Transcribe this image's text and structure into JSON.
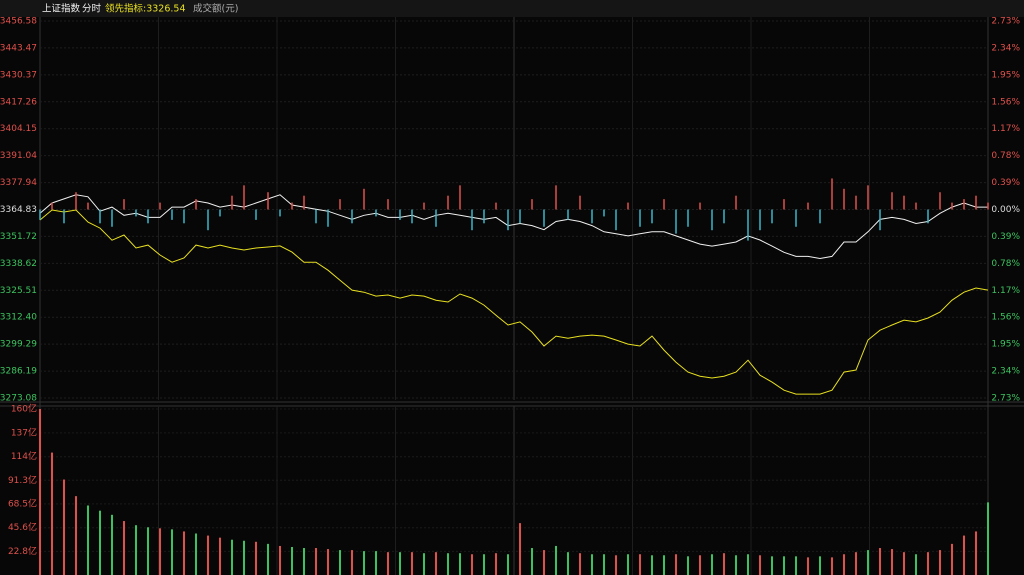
{
  "chart_data": [
    {
      "type": "line",
      "title": "上证指数",
      "period": "分时",
      "indicator_label": "领先指标:3326.54",
      "ylim": [
        3273.08,
        3456.58
      ],
      "yticks": [
        3456.58,
        3443.47,
        3430.37,
        3417.26,
        3404.15,
        3391.04,
        3377.94,
        3364.83,
        3351.72,
        3338.62,
        3325.51,
        {
          "value": 3312.4,
          "label": "3312.40"
        },
        3299.29,
        3286.19,
        3273.08
      ],
      "y2lim": [
        -2.73,
        2.73
      ],
      "y2ticks": [
        {
          "value": 2.73,
          "label": "2.73%"
        },
        {
          "value": 2.34,
          "label": "2.34%"
        },
        {
          "value": 1.95,
          "label": "1.95%"
        },
        {
          "value": 1.56,
          "label": "1.56%"
        },
        {
          "value": 1.17,
          "label": "1.17%"
        },
        {
          "value": 0.78,
          "label": "0.78%"
        },
        {
          "value": 0.39,
          "label": "0.39%"
        },
        {
          "value": 0,
          "label": "0.00%"
        },
        {
          "value": -0.39,
          "label": "0.39%"
        },
        {
          "value": -0.78,
          "label": "0.78%"
        },
        {
          "value": -1.17,
          "label": "1.17%"
        },
        {
          "value": -1.56,
          "label": "1.56%"
        },
        {
          "value": -1.95,
          "label": "1.95%"
        },
        {
          "value": -2.34,
          "label": "2.34%"
        },
        {
          "value": -2.73,
          "label": "2.73%"
        }
      ],
      "up_color": "#e0514c",
      "down_color": "#3cc35f",
      "flat_color": "#dddddd",
      "grid": true,
      "series": [
        {
          "color": "#f0f0f0",
          "values": [
            3363,
            3368,
            3370,
            3372,
            3371,
            3364,
            3366,
            3362,
            3363,
            3361,
            3361,
            3366,
            3366,
            3369,
            3368,
            3366,
            3367,
            3366,
            3368,
            3370,
            3372,
            3367,
            3366,
            3365,
            3364,
            3362,
            3360,
            3362,
            3363,
            3361,
            3361,
            3362,
            3360,
            3362,
            3363,
            3362,
            3361,
            3360,
            3361,
            3357,
            3358,
            3357,
            3355,
            3359,
            3360,
            3359,
            3357,
            3354,
            3353,
            3352,
            3353,
            3354,
            3354,
            3352,
            3350,
            3348,
            3347,
            3348,
            3349,
            3352,
            3350,
            3347,
            3344,
            3342,
            3342,
            3341,
            3342,
            3349,
            3349,
            3354,
            3360,
            3361,
            3360,
            3358,
            3359,
            3363,
            3366,
            3368,
            3366,
            3366
          ]
        },
        {
          "color": "#e8e020",
          "values": [
            3359.7,
            3364.6,
            3363.6,
            3364.6,
            3358.7,
            3355.8,
            3349.9,
            3352.4,
            3346.1,
            3347.5,
            3342.7,
            3339.2,
            3341.2,
            3347.5,
            3346.1,
            3347.5,
            3346.1,
            3345.1,
            3346.1,
            3346.6,
            3347.1,
            3344.1,
            3339.2,
            3339.2,
            3335.3,
            3330.4,
            3325.6,
            3324.6,
            3322.7,
            3323.2,
            3321.7,
            3323.2,
            3322.7,
            3320.7,
            3319.8,
            3323.7,
            3321.7,
            3318.3,
            3313.4,
            3308.6,
            3310.1,
            3305.2,
            3298.4,
            3303.2,
            3302.2,
            3303.2,
            3303.7,
            3303.2,
            3301.3,
            3299.3,
            3298.4,
            3303.2,
            3296.4,
            3290.5,
            3285.7,
            3283.7,
            3282.8,
            3283.7,
            3285.7,
            3291.5,
            3284.2,
            3280.8,
            3276.9,
            3275.0,
            3275.0,
            3275.0,
            3276.9,
            3285.7,
            3286.7,
            3301.3,
            3306.1,
            3308.6,
            3311.0,
            3310.1,
            3312.0,
            3314.9,
            3320.7,
            3324.6,
            3326.6,
            3325.6
          ]
        },
        {
          "type": "bar",
          "axis": "y2",
          "up_color": "#e0514c",
          "down_color": "#3cb6c8",
          "values": [
            -0.15,
            0.1,
            -0.2,
            0.25,
            0.1,
            -0.2,
            -0.25,
            0.15,
            -0.1,
            -0.2,
            0.1,
            -0.15,
            -0.2,
            0.15,
            -0.3,
            -0.1,
            0.2,
            0.35,
            -0.15,
            0.25,
            -0.1,
            0.1,
            0.2,
            -0.2,
            -0.25,
            0.15,
            -0.2,
            0.3,
            -0.1,
            0.15,
            -0.15,
            -0.2,
            0.1,
            -0.25,
            0.2,
            0.35,
            -0.3,
            -0.2,
            0.1,
            -0.3,
            -0.2,
            0.15,
            -0.25,
            0.35,
            -0.15,
            0.2,
            -0.2,
            -0.1,
            -0.3,
            0.1,
            -0.25,
            -0.2,
            0.15,
            -0.35,
            -0.25,
            0.1,
            -0.3,
            -0.2,
            0.2,
            -0.45,
            -0.3,
            -0.2,
            0.15,
            -0.25,
            0.1,
            -0.2,
            0.45,
            0.3,
            0.2,
            0.35,
            -0.3,
            0.25,
            0.2,
            0.1,
            -0.2,
            0.25,
            0.1,
            0.15,
            0.2,
            0.1
          ]
        }
      ]
    },
    {
      "type": "bar",
      "title": "成交额(元)",
      "ylim": [
        0,
        160
      ],
      "label_color": "#e0514c",
      "yticks": [
        {
          "value": 160,
          "label": "160亿"
        },
        {
          "value": 137,
          "label": "137亿"
        },
        {
          "value": 114,
          "label": "114亿"
        },
        {
          "value": 91.3,
          "label": "91.3亿"
        },
        {
          "value": 68.5,
          "label": "68.5亿"
        },
        {
          "value": 45.6,
          "label": "45.6亿"
        },
        {
          "value": 22.8,
          "label": "22.8亿"
        }
      ],
      "values": [
        160,
        118,
        92,
        76,
        67,
        62,
        58,
        52,
        48,
        46,
        45,
        44,
        42,
        40,
        38,
        36,
        34,
        33,
        32,
        30,
        28,
        27,
        26,
        26,
        25,
        24,
        24,
        23,
        23,
        22,
        22,
        22,
        21,
        22,
        21,
        21,
        20,
        20,
        21,
        20,
        50,
        26,
        24,
        28,
        22,
        21,
        20,
        20,
        19,
        20,
        20,
        19,
        19,
        20,
        18,
        19,
        20,
        21,
        19,
        20,
        19,
        18,
        18,
        18,
        17,
        18,
        17,
        20,
        22,
        24,
        26,
        25,
        22,
        20,
        22,
        24,
        30,
        38,
        42,
        70
      ],
      "colors": [
        "#e0514c",
        "#e0514c",
        "#e0514c",
        "#e0514c",
        "#3cc35f",
        "#3cc35f",
        "#3cc35f",
        "#e0514c",
        "#3cc35f",
        "#3cc35f",
        "#e0514c",
        "#3cc35f",
        "#e0514c",
        "#3cc35f",
        "#e0514c",
        "#e0514c",
        "#3cc35f",
        "#3cc35f",
        "#e0514c",
        "#3cc35f",
        "#e0514c",
        "#3cc35f",
        "#3cc35f",
        "#e0514c",
        "#e0514c",
        "#3cc35f",
        "#e0514c",
        "#3cc35f",
        "#3cc35f",
        "#e0514c",
        "#3cc35f",
        "#e0514c",
        "#3cc35f",
        "#e0514c",
        "#3cc35f",
        "#3cc35f",
        "#e0514c",
        "#3cc35f",
        "#e0514c",
        "#3cc35f",
        "#e0514c",
        "#3cc35f",
        "#e0514c",
        "#3cc35f",
        "#3cc35f",
        "#e0514c",
        "#3cc35f",
        "#3cc35f",
        "#e0514c",
        "#3cc35f",
        "#e0514c",
        "#3cc35f",
        "#3cc35f",
        "#e0514c",
        "#3cc35f",
        "#e0514c",
        "#3cc35f",
        "#e0514c",
        "#3cc35f",
        "#3cc35f",
        "#e0514c",
        "#3cc35f",
        "#3cc35f",
        "#3cc35f",
        "#e0514c",
        "#3cc35f",
        "#e0514c",
        "#e0514c",
        "#e0514c",
        "#3cc35f",
        "#e0514c",
        "#e0514c",
        "#e0514c",
        "#3cc35f",
        "#e0514c",
        "#e0514c",
        "#e0514c",
        "#e0514c",
        "#e0514c",
        "#3cc35f"
      ]
    }
  ]
}
